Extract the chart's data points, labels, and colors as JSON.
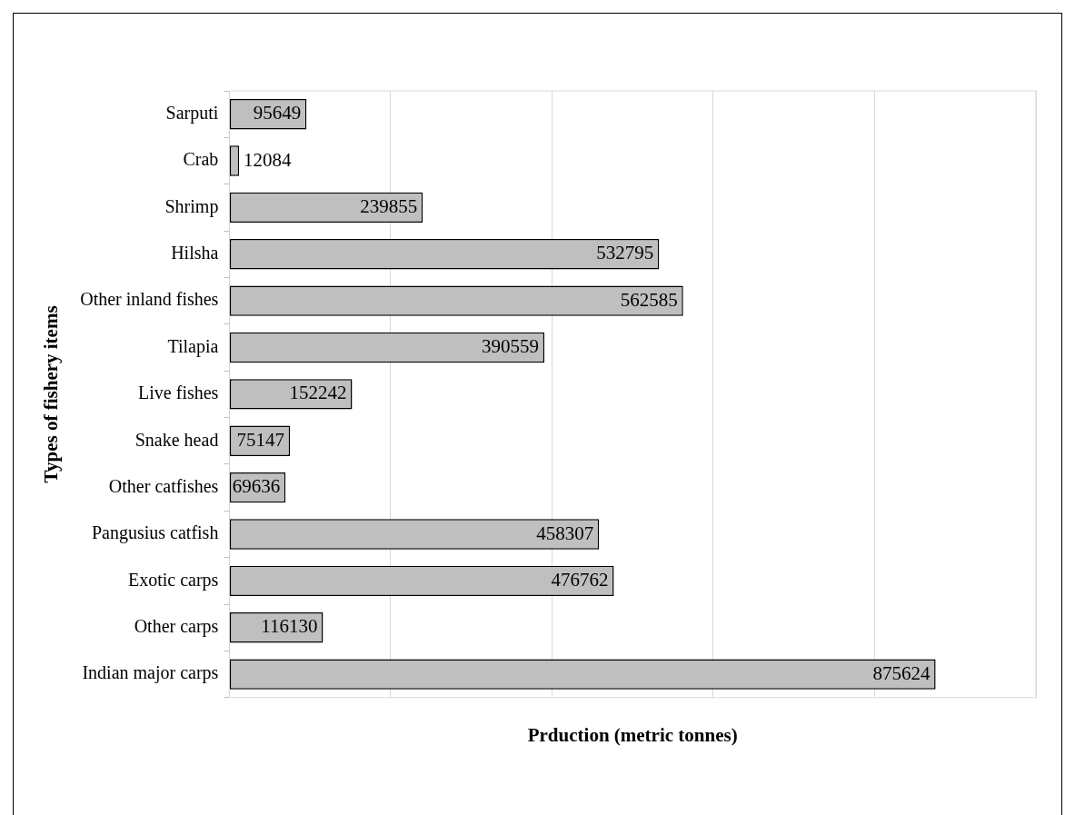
{
  "chart_data": {
    "type": "bar",
    "orientation": "horizontal",
    "xlabel": "Prduction (metric tonnes)",
    "ylabel": "Types of fishery items",
    "categories": [
      "Sarputi",
      "Crab",
      "Shrimp",
      "Hilsha",
      "Other inland fishes",
      "Tilapia",
      "Live fishes",
      "Snake head",
      "Other catfishes",
      "Pangusius catfish",
      "Exotic carps",
      "Other carps",
      "Indian major carps"
    ],
    "values": [
      95649,
      12084,
      239855,
      532795,
      562585,
      390559,
      152242,
      75147,
      69636,
      458307,
      476762,
      116130,
      875624
    ],
    "color": "#bfbfbf",
    "data_labels": true,
    "grid": "x",
    "tick_labels": "y",
    "legend": false,
    "xlim": [
      0,
      1000000
    ],
    "xticks": [
      {
        "value": 0,
        "label": null
      },
      {
        "value": 200000,
        "label": null
      },
      {
        "value": 400000,
        "label": null
      },
      {
        "value": 600000,
        "label": null
      }
    ]
  }
}
